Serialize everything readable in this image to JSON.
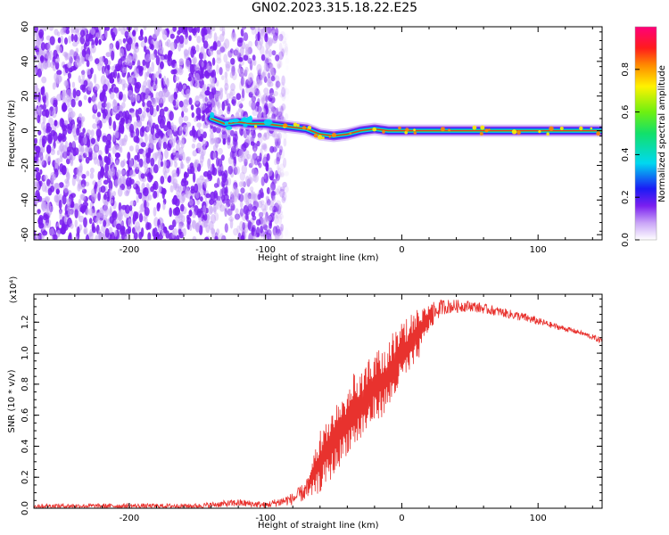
{
  "figure": {
    "title": "GN02.2023.315.18.22.E25"
  },
  "colors": {
    "snr_line": "#e8322e",
    "spectrogram_noise": "#7a1ff0",
    "ridge": "#ff2a10"
  },
  "chart_data": [
    {
      "type": "heatmap",
      "name": "spectrogram",
      "xlabel": "Height of straight line (km)",
      "ylabel": "Frequency (Hz)",
      "xlim": [
        -270,
        147
      ],
      "ylim": [
        -63,
        60
      ],
      "x_ticks": [
        -200,
        -100,
        0,
        100
      ],
      "x_tick_labels": [
        "-200",
        "-100",
        "0",
        "100"
      ],
      "y_ticks": [
        -60,
        -40,
        -20,
        0,
        20,
        40,
        60
      ],
      "y_tick_labels": [
        "-60",
        "-40",
        "-20",
        "0",
        "20",
        "40",
        "60"
      ],
      "colorbar": {
        "label": "Normalized spectral amplitude",
        "range": [
          0,
          1
        ],
        "ticks": [
          0.0,
          0.2,
          0.4,
          0.6,
          0.8
        ],
        "tick_labels": [
          "0.0",
          "0.2",
          "0.4",
          "0.6",
          "0.8"
        ],
        "colormap": "rainbow"
      },
      "noise_region_x": [
        -270,
        -97
      ],
      "ridge": {
        "x": [
          -140,
          -130,
          -120,
          -110,
          -100,
          -90,
          -80,
          -70,
          -60,
          -50,
          -40,
          -30,
          -20,
          -10,
          0,
          20,
          40,
          60,
          80,
          100,
          120,
          147
        ],
        "y": [
          7,
          4,
          5,
          4,
          4,
          3,
          2,
          1,
          -2,
          -3,
          -2,
          0,
          1,
          0,
          0,
          0,
          0,
          0,
          0,
          0,
          0,
          0
        ]
      }
    },
    {
      "type": "line",
      "name": "snr",
      "xlabel": "Height of straight line (km)",
      "ylabel": "SNR (10 * v/v)",
      "multiplier": "(x10⁴)",
      "xlim": [
        -270,
        147
      ],
      "ylim": [
        0,
        1.38
      ],
      "x_ticks": [
        -200,
        -100,
        0,
        100
      ],
      "x_tick_labels": [
        "-200",
        "-100",
        "0",
        "100"
      ],
      "y_ticks": [
        0.0,
        0.2,
        0.4,
        0.6,
        0.8,
        1.0,
        1.2
      ],
      "y_tick_labels": [
        "0.0",
        "0.2",
        "0.4",
        "0.6",
        "0.8",
        "1.0",
        "1.2"
      ],
      "envelope": {
        "x": [
          -270,
          -150,
          -120,
          -100,
          -80,
          -70,
          -60,
          -50,
          -40,
          -30,
          -20,
          -10,
          0,
          10,
          20,
          30,
          50,
          70,
          90,
          110,
          130,
          147
        ],
        "low": [
          0.0,
          0.0,
          0.01,
          0.0,
          0.02,
          0.05,
          0.1,
          0.2,
          0.35,
          0.42,
          0.55,
          0.62,
          0.8,
          0.9,
          1.15,
          1.25,
          1.27,
          1.24,
          1.2,
          1.16,
          1.12,
          1.06
        ],
        "high": [
          0.03,
          0.03,
          0.06,
          0.04,
          0.1,
          0.18,
          0.5,
          0.65,
          0.8,
          0.95,
          1.0,
          1.1,
          1.2,
          1.28,
          1.32,
          1.35,
          1.34,
          1.3,
          1.26,
          1.2,
          1.15,
          1.1
        ]
      }
    }
  ]
}
